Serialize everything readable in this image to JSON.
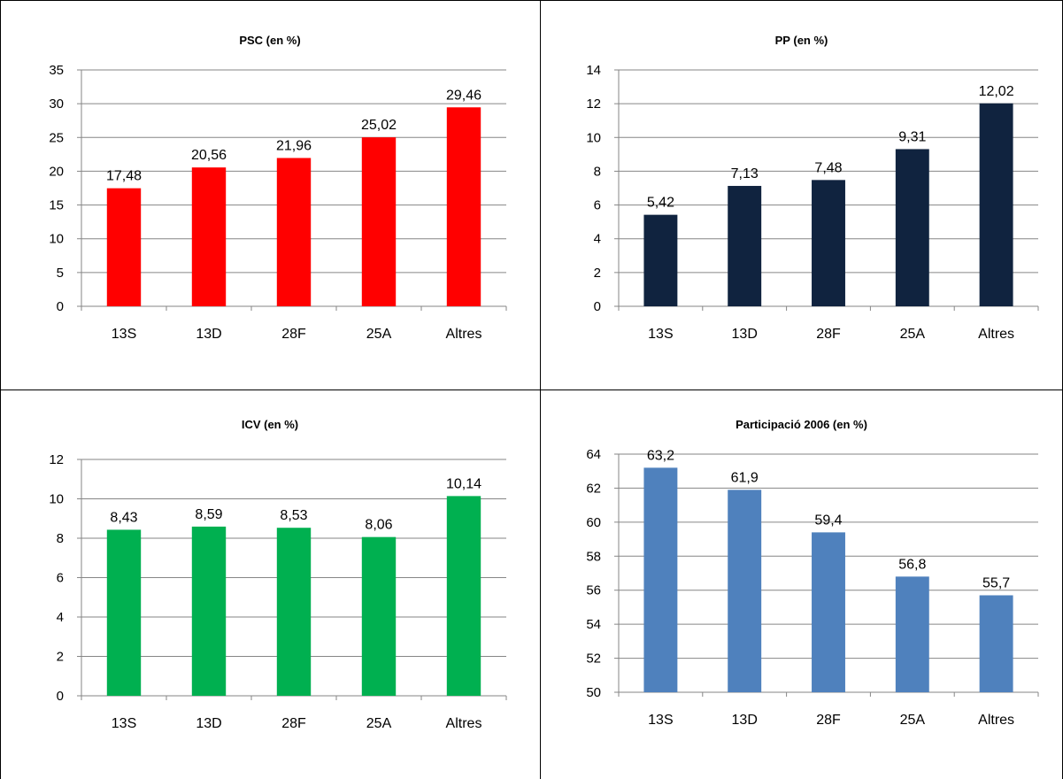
{
  "chart_data": [
    {
      "type": "bar",
      "title": "PSC (en %)",
      "categories": [
        "13S",
        "13D",
        "28F",
        "25A",
        "Altres"
      ],
      "values": [
        17.48,
        20.56,
        21.96,
        25.02,
        29.46
      ],
      "value_labels": [
        "17,48",
        "20,56",
        "21,96",
        "25,02",
        "29,46"
      ],
      "ylim": [
        0,
        35
      ],
      "yticks": [
        0,
        5,
        10,
        15,
        20,
        25,
        30,
        35
      ],
      "grid": true,
      "color": "#ff0000"
    },
    {
      "type": "bar",
      "title": "PP (en %)",
      "categories": [
        "13S",
        "13D",
        "28F",
        "25A",
        "Altres"
      ],
      "values": [
        5.42,
        7.13,
        7.48,
        9.31,
        12.02
      ],
      "value_labels": [
        "5,42",
        "7,13",
        "7,48",
        "9,31",
        "12,02"
      ],
      "ylim": [
        0,
        14
      ],
      "yticks": [
        0,
        2,
        4,
        6,
        8,
        10,
        12,
        14
      ],
      "grid": true,
      "color": "#10233f"
    },
    {
      "type": "bar",
      "title": "ICV (en %)",
      "categories": [
        "13S",
        "13D",
        "28F",
        "25A",
        "Altres"
      ],
      "values": [
        8.43,
        8.59,
        8.53,
        8.06,
        10.14
      ],
      "value_labels": [
        "8,43",
        "8,59",
        "8,53",
        "8,06",
        "10,14"
      ],
      "ylim": [
        0,
        12
      ],
      "yticks": [
        0,
        2,
        4,
        6,
        8,
        10,
        12
      ],
      "grid": true,
      "color": "#00b050"
    },
    {
      "type": "bar",
      "title": "Participació 2006 (en %)",
      "categories": [
        "13S",
        "13D",
        "28F",
        "25A",
        "Altres"
      ],
      "values": [
        63.2,
        61.9,
        59.4,
        56.8,
        55.7
      ],
      "value_labels": [
        "63,2",
        "61,9",
        "59,4",
        "56,8",
        "55,7"
      ],
      "ylim": [
        50,
        64
      ],
      "yticks": [
        50,
        52,
        54,
        56,
        58,
        60,
        62,
        64
      ],
      "grid": true,
      "color": "#4f81bd"
    }
  ]
}
